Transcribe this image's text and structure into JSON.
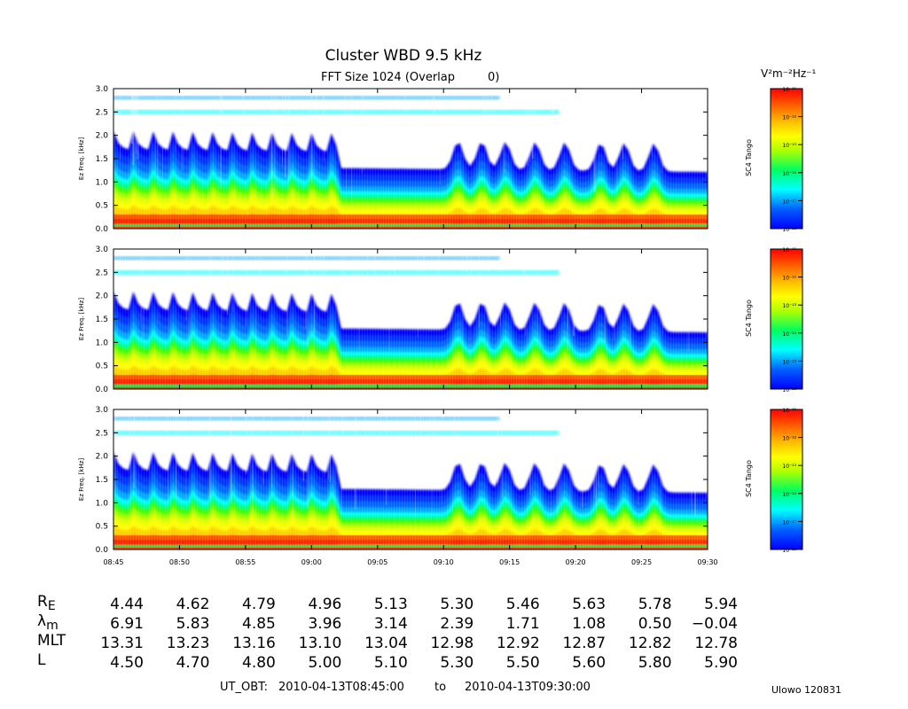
{
  "header": {
    "title": "Cluster WBD 9.5 kHz",
    "subtitle": "FFT Size 1024 (Overlap",
    "subtitle_value": "0)",
    "colorbar_unit": "V²m⁻²Hz⁻¹"
  },
  "chart_data": {
    "type": "heatmap",
    "panels": [
      {
        "ylabel": "Ez Freq. [kHz]",
        "colorbar_label": "SC4 Tango"
      },
      {
        "ylabel": "Ez Freq. [kHz]",
        "colorbar_label": "SC4 Tango"
      },
      {
        "ylabel": "Ez Freq. [kHz]",
        "colorbar_label": "SC4 Tango"
      }
    ],
    "y_ticks": [
      "0.0",
      "0.5",
      "1.0",
      "1.5",
      "2.0",
      "2.5",
      "3.0"
    ],
    "ylim": [
      0,
      3.0
    ],
    "x_ticks": [
      "08:45",
      "08:50",
      "08:55",
      "09:00",
      "09:05",
      "09:10",
      "09:15",
      "09:20",
      "09:25",
      "09:30"
    ],
    "colorbar_ticks": [
      "10⁻¹¹",
      "10⁻¹²",
      "10⁻¹³",
      "10⁻¹⁴",
      "10⁻¹⁵",
      "10⁻¹⁶"
    ],
    "colormap": [
      "#0000ff",
      "#00c0ff",
      "#00ffff",
      "#00ff60",
      "#b0ff00",
      "#ffff00",
      "#ffc000",
      "#ff6000",
      "#ff0000"
    ]
  },
  "ephemeris": {
    "rows": [
      {
        "label": "R",
        "sub": "E",
        "values": [
          "4.44",
          "4.62",
          "4.79",
          "4.96",
          "5.13",
          "5.30",
          "5.46",
          "5.63",
          "5.78",
          "5.94"
        ]
      },
      {
        "label": "λ",
        "sub": "m",
        "values": [
          "6.91",
          "5.83",
          "4.85",
          "3.96",
          "3.14",
          "2.39",
          "1.71",
          "1.08",
          "0.50",
          "−0.04"
        ]
      },
      {
        "label": "MLT",
        "sub": "",
        "values": [
          "13.31",
          "13.23",
          "13.16",
          "13.10",
          "13.04",
          "12.98",
          "12.92",
          "12.87",
          "12.82",
          "12.78"
        ]
      },
      {
        "label": "L",
        "sub": "",
        "values": [
          "4.50",
          "4.70",
          "4.80",
          "5.00",
          "5.10",
          "5.30",
          "5.50",
          "5.60",
          "5.80",
          "5.90"
        ]
      }
    ]
  },
  "footer": {
    "ut_label": "UT_OBT:",
    "start": "2010-04-13T08:45:00",
    "to": "to",
    "end": "2010-04-13T09:30:00",
    "credit": "Ulowo 120831"
  }
}
